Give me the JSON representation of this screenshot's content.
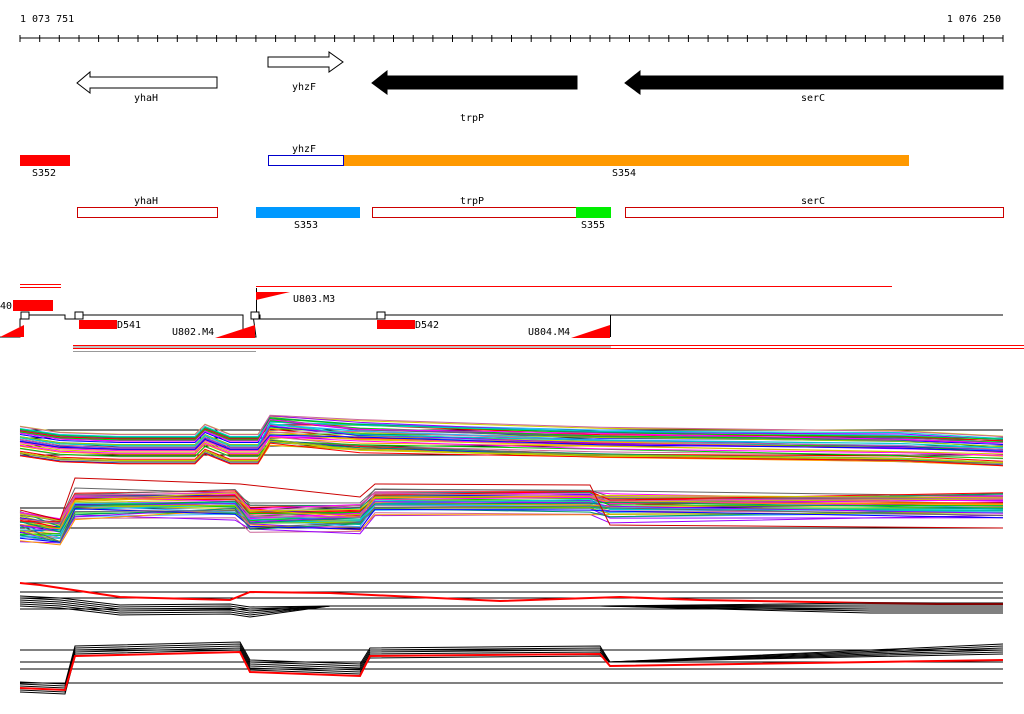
{
  "genome_browser": {
    "ruler": {
      "start_label": "1 073 751",
      "end_label": "1 076 250"
    },
    "genes": [
      {
        "name": "yhaH",
        "strand": "-",
        "fill": "#ffffff"
      },
      {
        "name": "yhzF",
        "strand": "+",
        "fill": "#ffffff"
      },
      {
        "name": "trpP",
        "strand": "-",
        "fill": "#000000"
      },
      {
        "name": "serC",
        "strand": "-",
        "fill": "#000000"
      }
    ],
    "segments_row1": [
      {
        "name": "S352",
        "color": "#ff0000"
      },
      {
        "name": "yhzF",
        "color": "#0000cc"
      },
      {
        "name": "S354",
        "color": "#ff9900"
      }
    ],
    "segments_row2": [
      {
        "name": "yhaH",
        "color": "#cc0000"
      },
      {
        "name": "S353",
        "color": "#0099ff"
      },
      {
        "name": "trpP",
        "color": "#cc0000"
      },
      {
        "name": "S355",
        "color": "#00ee00"
      },
      {
        "name": "serC",
        "color": "#cc0000"
      }
    ],
    "features": [
      {
        "name": "40"
      },
      {
        "name": "U803.M3"
      },
      {
        "name": "D541"
      },
      {
        "name": "U802.M4"
      },
      {
        "name": "D542"
      },
      {
        "name": "U804.M4"
      }
    ],
    "colors": {
      "accent_red": "#ff0000",
      "orange": "#ff9900",
      "blue": "#0099ff",
      "green": "#00ee00",
      "black": "#000000"
    }
  }
}
